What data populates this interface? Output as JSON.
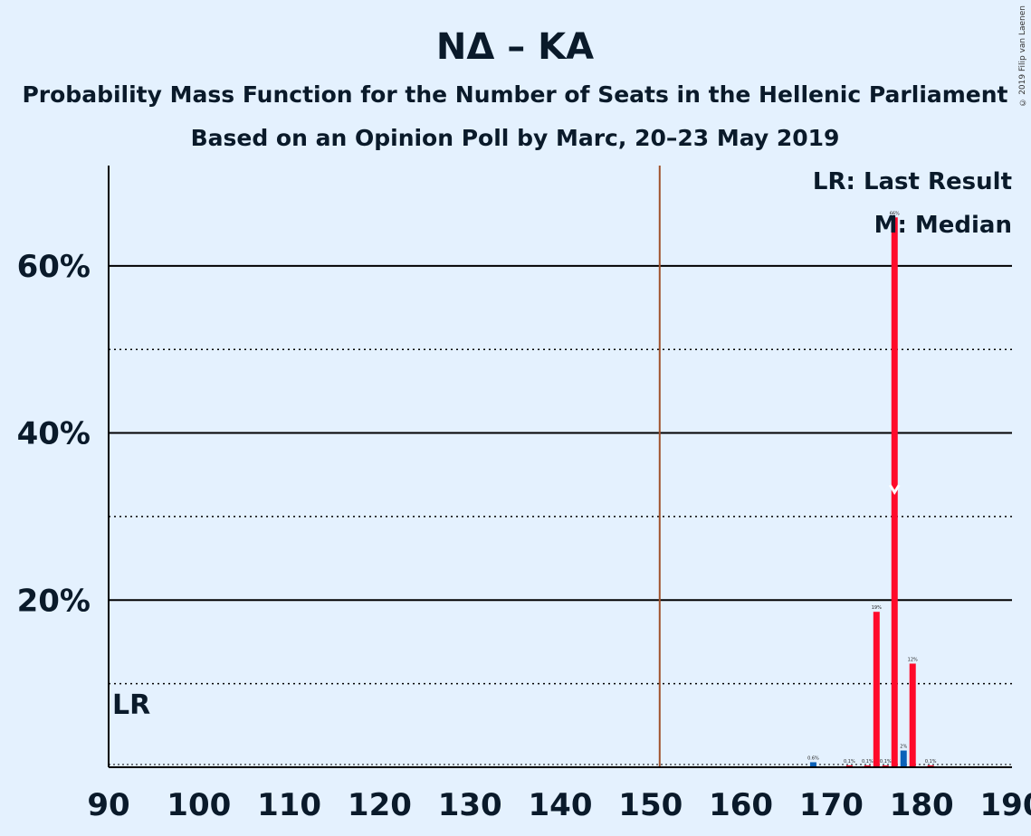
{
  "chart_data": {
    "type": "bar",
    "title": "ΝΔ – ΚΑ",
    "subtitle": "Probability Mass Function for the Number of Seats in the Hellenic Parliament",
    "subtitle2": "Based on an Opinion Poll by Marc, 20–23 May 2019",
    "copyright": "© 2019 Filip van Laenen",
    "xlim": [
      90,
      190
    ],
    "ylim": [
      0,
      72
    ],
    "x_ticks": [
      "90",
      "100",
      "110",
      "120",
      "130",
      "140",
      "150",
      "160",
      "170",
      "180",
      "190"
    ],
    "y_ticks": [
      "20%",
      "40%",
      "60%"
    ],
    "y_tick_values": [
      20,
      40,
      60
    ],
    "y_minor_gridlines": [
      10,
      30,
      50
    ],
    "majority_line": 151,
    "last_result": {
      "seat": 90,
      "label": "LR"
    },
    "median": {
      "seat": 177
    },
    "legend": [
      "LR: Last Result",
      "M: Median"
    ],
    "colors": {
      "background": "#e4f1fe",
      "bar": "#ff0a2a",
      "bar_secondary": "#0b61b8",
      "majority": "#a0522d",
      "axis": "#000000"
    },
    "bars": [
      {
        "seat": 168,
        "value": 0.6,
        "label": "0.6%",
        "color": "blue"
      },
      {
        "seat": 172,
        "value": 0.1,
        "label": "0.1%",
        "color": "red"
      },
      {
        "seat": 174,
        "value": 0.1,
        "label": "0.1%",
        "color": "red"
      },
      {
        "seat": 175,
        "value": 18.6,
        "label": "19%",
        "color": "red"
      },
      {
        "seat": 176,
        "value": 0.1,
        "label": "0.1%",
        "color": "red"
      },
      {
        "seat": 177,
        "value": 65.8,
        "label": "66%",
        "color": "red"
      },
      {
        "seat": 178,
        "value": 2.0,
        "label": "2%",
        "color": "blue"
      },
      {
        "seat": 179,
        "value": 12.4,
        "label": "12%",
        "color": "red"
      },
      {
        "seat": 181,
        "value": 0.1,
        "label": "0.1%",
        "color": "red"
      }
    ]
  }
}
